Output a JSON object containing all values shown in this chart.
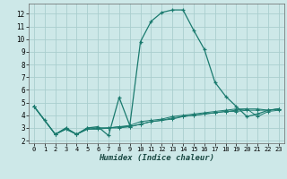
{
  "xlabel": "Humidex (Indice chaleur)",
  "xlim": [
    -0.5,
    23.5
  ],
  "ylim": [
    1.8,
    12.8
  ],
  "yticks": [
    2,
    3,
    4,
    5,
    6,
    7,
    8,
    9,
    10,
    11,
    12
  ],
  "xticks": [
    0,
    1,
    2,
    3,
    4,
    5,
    6,
    7,
    8,
    9,
    10,
    11,
    12,
    13,
    14,
    15,
    16,
    17,
    18,
    19,
    20,
    21,
    22,
    23
  ],
  "background_color": "#cde8e8",
  "grid_color": "#aacece",
  "line_color": "#1a7a6e",
  "series": [
    {
      "x": [
        0,
        1,
        2,
        3,
        4,
        5,
        6,
        7,
        8,
        9,
        10,
        11,
        12,
        13,
        14,
        15,
        16,
        17,
        18,
        19,
        20,
        21,
        22,
        23
      ],
      "y": [
        4.7,
        3.6,
        2.5,
        3.0,
        2.5,
        3.0,
        3.1,
        2.4,
        5.4,
        3.2,
        9.8,
        11.4,
        12.1,
        12.3,
        12.3,
        10.7,
        9.2,
        6.6,
        5.5,
        4.7,
        3.9,
        4.1,
        4.4,
        4.5
      ]
    },
    {
      "x": [
        0,
        2,
        3,
        4,
        5,
        6,
        7,
        8,
        9,
        10,
        11,
        12,
        13,
        14,
        15,
        16,
        17,
        18,
        19,
        20,
        21,
        22,
        23
      ],
      "y": [
        4.7,
        2.5,
        3.0,
        2.5,
        3.0,
        3.0,
        3.0,
        3.1,
        3.2,
        3.5,
        3.6,
        3.7,
        3.9,
        4.0,
        4.1,
        4.2,
        4.3,
        4.4,
        4.5,
        4.5,
        4.5,
        4.4,
        4.5
      ]
    },
    {
      "x": [
        0,
        2,
        3,
        4,
        5,
        6,
        7,
        8,
        9,
        10,
        11,
        12,
        13,
        14,
        15,
        16,
        17,
        18,
        19,
        20,
        21,
        22,
        23
      ],
      "y": [
        4.7,
        2.5,
        2.9,
        2.5,
        2.9,
        3.0,
        3.0,
        3.1,
        3.1,
        3.3,
        3.5,
        3.6,
        3.8,
        3.9,
        4.0,
        4.1,
        4.2,
        4.3,
        4.4,
        4.5,
        3.9,
        4.3,
        4.4
      ]
    },
    {
      "x": [
        0,
        2,
        3,
        4,
        5,
        6,
        7,
        8,
        9,
        10,
        11,
        12,
        13,
        14,
        15,
        16,
        17,
        18,
        19,
        20,
        21,
        22,
        23
      ],
      "y": [
        4.7,
        2.5,
        2.9,
        2.5,
        2.9,
        2.9,
        3.0,
        3.0,
        3.1,
        3.3,
        3.5,
        3.6,
        3.7,
        3.9,
        4.0,
        4.1,
        4.2,
        4.3,
        4.3,
        4.4,
        4.4,
        4.4,
        4.5
      ]
    }
  ]
}
